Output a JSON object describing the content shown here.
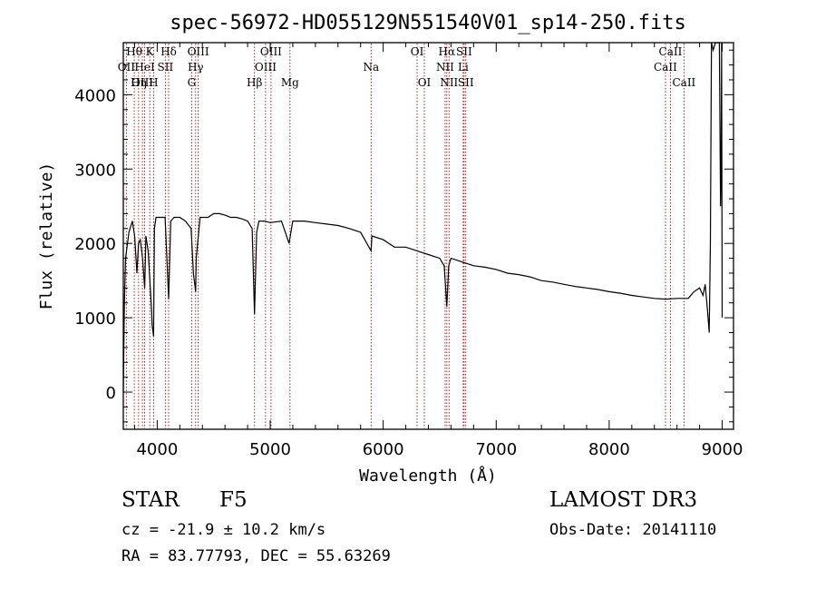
{
  "chart_data": {
    "type": "line",
    "title": "spec-56972-HD055129N551540V01_sp14-250.fits",
    "xlabel": "Wavelength (Å)",
    "ylabel": "Flux (relative)",
    "xlim": [
      3700,
      9100
    ],
    "ylim": [
      -500,
      4700
    ],
    "xticks": [
      4000,
      5000,
      6000,
      7000,
      8000,
      9000
    ],
    "yticks": [
      0,
      1000,
      2000,
      3000,
      4000
    ],
    "series": [
      {
        "name": "spectrum",
        "x": [
          3700,
          3710,
          3720,
          3750,
          3780,
          3800,
          3820,
          3835,
          3850,
          3870,
          3889,
          3900,
          3920,
          3950,
          3955,
          3968,
          3975,
          3990,
          4030,
          4070,
          4101,
          4120,
          4150,
          4200,
          4250,
          4300,
          4320,
          4340,
          4345,
          4380,
          4400,
          4450,
          4500,
          4550,
          4600,
          4650,
          4700,
          4750,
          4800,
          4840,
          4861,
          4880,
          4900,
          4950,
          5000,
          5100,
          5167,
          5200,
          5300,
          5400,
          5500,
          5600,
          5700,
          5800,
          5893,
          5900,
          6000,
          6100,
          6200,
          6300,
          6400,
          6500,
          6540,
          6563,
          6580,
          6600,
          6700,
          6800,
          6900,
          7000,
          7100,
          7200,
          7300,
          7400,
          7500,
          7600,
          7700,
          7800,
          7900,
          8000,
          8100,
          8200,
          8300,
          8400,
          8500,
          8600,
          8700,
          8750,
          8800,
          8830,
          8850,
          8870,
          8880,
          8885,
          8895,
          8905,
          8920,
          8940,
          8960,
          8975,
          8985,
          8990,
          8995,
          9000
        ],
        "values": [
          0,
          1200,
          1800,
          2150,
          2300,
          2100,
          1600,
          2000,
          2050,
          1800,
          1400,
          2100,
          1900,
          1100,
          900,
          750,
          2200,
          2350,
          2350,
          2350,
          1250,
          2300,
          2350,
          2350,
          2300,
          2200,
          1600,
          1350,
          1800,
          2350,
          2350,
          2350,
          2400,
          2400,
          2380,
          2350,
          2350,
          2330,
          2300,
          2200,
          1050,
          2150,
          2300,
          2300,
          2280,
          2300,
          2000,
          2300,
          2300,
          2280,
          2260,
          2240,
          2200,
          2150,
          1900,
          2100,
          2050,
          1950,
          1950,
          1900,
          1850,
          1800,
          1700,
          1150,
          1700,
          1800,
          1750,
          1700,
          1680,
          1650,
          1600,
          1580,
          1550,
          1500,
          1480,
          1450,
          1420,
          1400,
          1380,
          1350,
          1330,
          1300,
          1280,
          1260,
          1250,
          1260,
          1260,
          1350,
          1400,
          1300,
          1450,
          1100,
          900,
          800,
          2000,
          4900,
          4600,
          4700,
          4850,
          4800,
          2500,
          3000,
          4700,
          1000
        ]
      }
    ],
    "lines": [
      {
        "label": "Hθ",
        "wave": 3797,
        "row": 0
      },
      {
        "label": "OII",
        "wave": 3727,
        "row": 1
      },
      {
        "label": "OIII",
        "wave": 3869,
        "row": 2
      },
      {
        "label": "K",
        "wave": 3934,
        "row": 0
      },
      {
        "label": "HeI",
        "wave": 3889,
        "row": 1
      },
      {
        "label": "Hη",
        "wave": 3835,
        "row": 2
      },
      {
        "label": "SII",
        "wave": 4072,
        "row": 1
      },
      {
        "label": "H",
        "wave": 3968,
        "row": 2
      },
      {
        "label": "Hδ",
        "wave": 4101,
        "row": 0
      },
      {
        "label": "OIII",
        "wave": 4363,
        "row": 0
      },
      {
        "label": "Hγ",
        "wave": 4340,
        "row": 1
      },
      {
        "label": "G",
        "wave": 4305,
        "row": 2
      },
      {
        "label": "Hβ",
        "wave": 4861,
        "row": 2
      },
      {
        "label": "OIII",
        "wave": 5007,
        "row": 0
      },
      {
        "label": "OIII",
        "wave": 4959,
        "row": 1
      },
      {
        "label": "Mg",
        "wave": 5175,
        "row": 2
      },
      {
        "label": "Na",
        "wave": 5893,
        "row": 1
      },
      {
        "label": "OI",
        "wave": 6300,
        "row": 0
      },
      {
        "label": "OI",
        "wave": 6364,
        "row": 2
      },
      {
        "label": "Hα",
        "wave": 6563,
        "row": 0
      },
      {
        "label": "NII",
        "wave": 6548,
        "row": 1
      },
      {
        "label": "NII",
        "wave": 6583,
        "row": 2
      },
      {
        "label": "SII",
        "wave": 6716,
        "row": 0
      },
      {
        "label": "Li",
        "wave": 6708,
        "row": 1
      },
      {
        "label": "SII",
        "wave": 6731,
        "row": 2
      },
      {
        "label": "CaII",
        "wave": 8542,
        "row": 0
      },
      {
        "label": "CaII",
        "wave": 8498,
        "row": 1
      },
      {
        "label": "CaII",
        "wave": 8662,
        "row": 2
      }
    ]
  },
  "info": {
    "obj_type": "STAR",
    "obj_subclass": "F5",
    "survey": "LAMOST DR3",
    "cz": "cz = -21.9 ± 10.2 km/s",
    "obs_date": "Obs-Date: 20141110",
    "radec": "RA =  83.77793, DEC =  55.63269"
  },
  "colors": {
    "spectrum": "#000000",
    "line_marker": "#a01010",
    "axes": "#000000"
  }
}
